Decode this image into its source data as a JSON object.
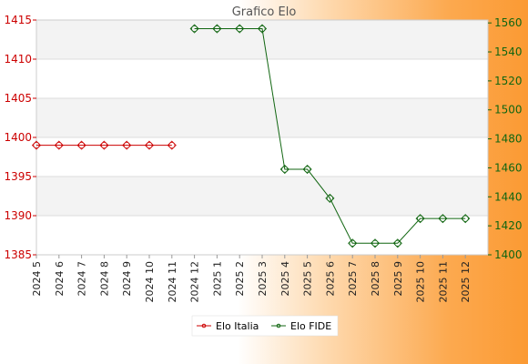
{
  "chart_data": {
    "type": "line",
    "title": "Grafico Elo",
    "categories": [
      "2024 5",
      "2024 6",
      "2024 7",
      "2024 8",
      "2024 9",
      "2024 10",
      "2024 11",
      "2024 12",
      "2025 1",
      "2025 2",
      "2025 3",
      "2025 4",
      "2025 5",
      "2025 6",
      "2025 7",
      "2025 8",
      "2025 9",
      "2025 10",
      "2025 11",
      "2025 12"
    ],
    "y_left": {
      "range": [
        1385,
        1415
      ],
      "ticks": [
        1385,
        1390,
        1395,
        1400,
        1405,
        1410,
        1415
      ]
    },
    "y_right": {
      "range": [
        1400,
        1562
      ],
      "ticks": [
        1400,
        1420,
        1440,
        1460,
        1480,
        1500,
        1520,
        1540,
        1560
      ]
    },
    "grid": true,
    "legend_position": "bottom",
    "series": [
      {
        "name": "Elo Italia",
        "axis": "left",
        "color": "#cc0000",
        "values": [
          1399,
          1399,
          1399,
          1399,
          1399,
          1399,
          1399,
          null,
          null,
          null,
          null,
          null,
          null,
          null,
          null,
          null,
          null,
          null,
          null,
          null
        ]
      },
      {
        "name": "Elo FIDE",
        "axis": "right",
        "color": "#116611",
        "values": [
          null,
          null,
          null,
          null,
          null,
          null,
          null,
          1556,
          1556,
          1556,
          1556,
          1459,
          1459,
          1439,
          1408,
          1408,
          1408,
          1425,
          1425,
          1425
        ]
      }
    ]
  }
}
